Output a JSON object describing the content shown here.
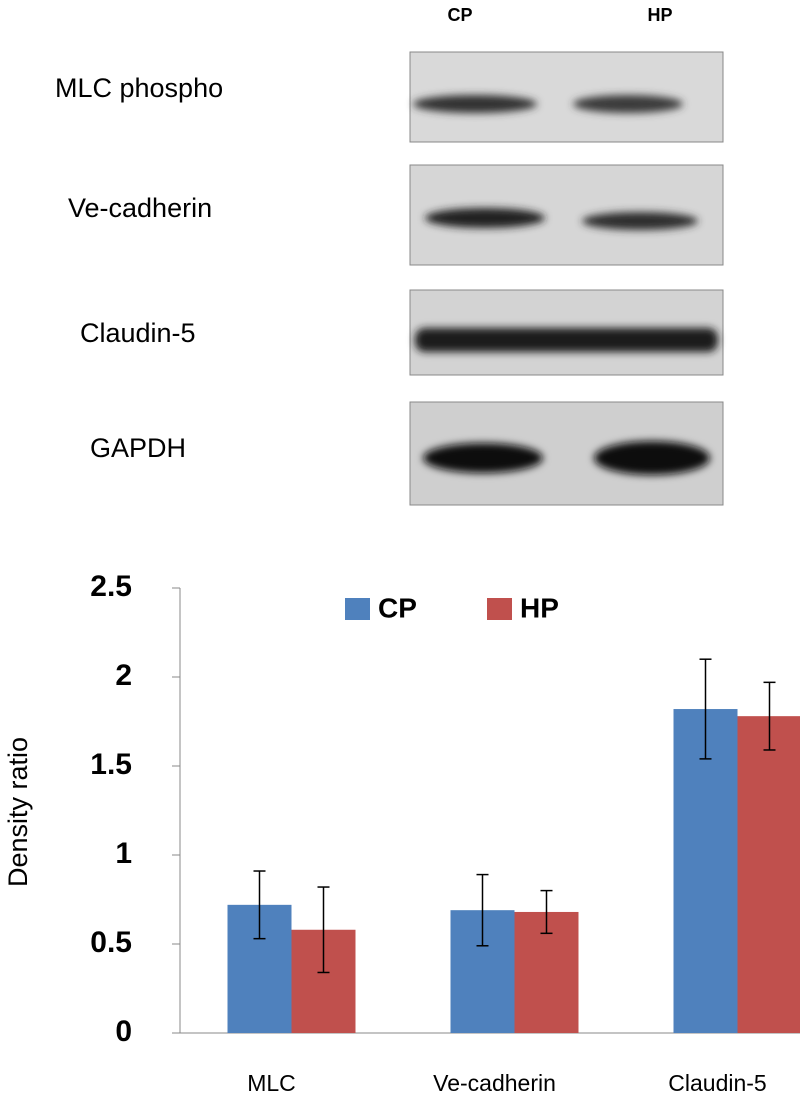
{
  "blot": {
    "lanes": [
      "CP",
      "HP"
    ],
    "rows": [
      "MLC phospho",
      "Ve-cadherin",
      "Claudin-5",
      "GAPDH"
    ]
  },
  "chart_data": {
    "type": "bar",
    "y_label": "Density ratio",
    "categories": [
      "MLC",
      "Ve-cadherin",
      "Claudin-5"
    ],
    "series": [
      {
        "name": "CP",
        "color": "#4f81bd",
        "values": [
          0.72,
          0.69,
          1.82
        ],
        "errors": [
          0.19,
          0.2,
          0.28
        ]
      },
      {
        "name": "HP",
        "color": "#c0504d",
        "values": [
          0.58,
          0.68,
          1.78
        ],
        "errors": [
          0.24,
          0.12,
          0.19
        ]
      }
    ],
    "ylim": [
      0,
      2.5
    ],
    "yticks": [
      0,
      0.5,
      1,
      1.5,
      2,
      2.5
    ],
    "grid": false,
    "legend": "top"
  }
}
